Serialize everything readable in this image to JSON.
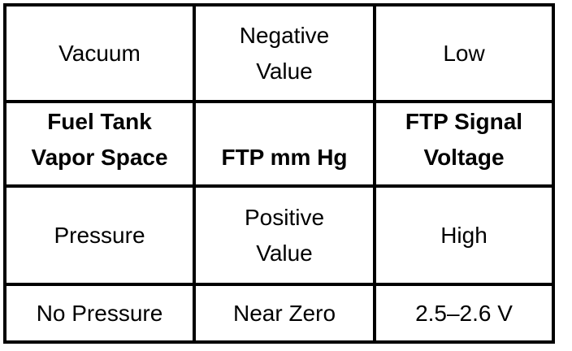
{
  "table": {
    "description": "FTP sensor pressure-to-voltage relationship table",
    "border_color": "#000000",
    "text_color": "#000000",
    "background_color": "#ffffff",
    "rows": [
      {
        "cells": [
          "Vacuum",
          "Negative\nValue",
          "Low"
        ]
      },
      {
        "cells": [
          "Fuel Tank\nVapor Space",
          "FTP mm Hg",
          "FTP Signal\nVoltage"
        ]
      },
      {
        "cells": [
          "Pressure",
          "Positive\nValue",
          "High"
        ]
      },
      {
        "cells": [
          "No Pressure",
          "Near Zero",
          "2.5–2.6 V"
        ]
      }
    ]
  }
}
